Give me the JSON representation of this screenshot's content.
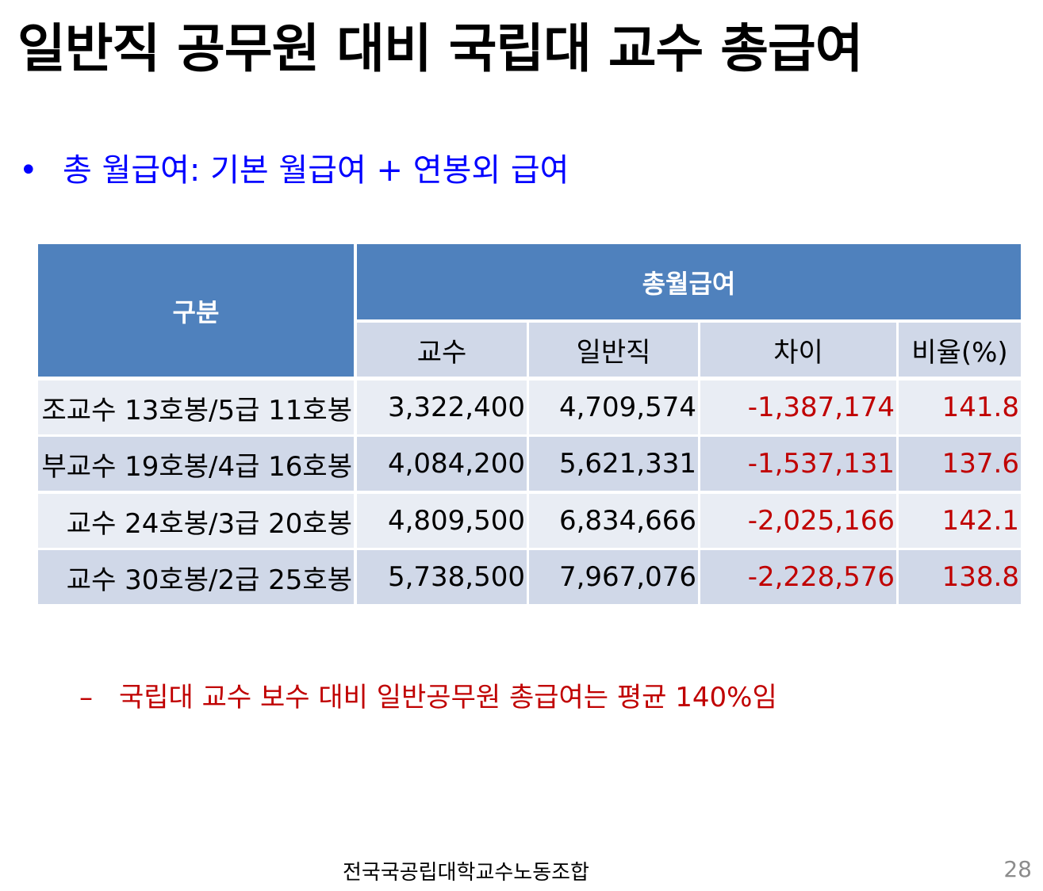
{
  "title": "일반직 공무원 대비 국립대 교수 총급여",
  "bullet": "총 월급여: 기본 월급여 + 연봉외 급여",
  "table": {
    "header_category": "구분",
    "header_group": "총월급여",
    "columns": [
      "교수",
      "일반직",
      "차이",
      "비율(%)"
    ],
    "rows": [
      {
        "label": "조교수 13호봉/5급 11호봉",
        "values": [
          "3,322,400",
          "4,709,574",
          "-1,387,174",
          "141.8"
        ]
      },
      {
        "label": "부교수 19호봉/4급 16호봉",
        "values": [
          "4,084,200",
          "5,621,331",
          "-1,537,131",
          "137.6"
        ]
      },
      {
        "label": "교수 24호봉/3급 20호봉",
        "values": [
          "4,809,500",
          "6,834,666",
          "-2,025,166",
          "142.1"
        ]
      },
      {
        "label": "교수 30호봉/2급 25호봉",
        "values": [
          "5,738,500",
          "7,967,076",
          "-2,228,576",
          "138.8"
        ]
      }
    ]
  },
  "note": "국립대 교수 보수 대비 일반공무원 총급여는 평균 140%임",
  "note_marker": "–",
  "bullet_marker": "•",
  "footer": "전국국공립대학교수노동조합",
  "page_number": "28",
  "colors": {
    "header": "#4f81bd",
    "row_light": "#e9edf4",
    "row_dark": "#d0d8e8",
    "accent_red": "#c00000",
    "bullet_blue": "#0000ff"
  }
}
